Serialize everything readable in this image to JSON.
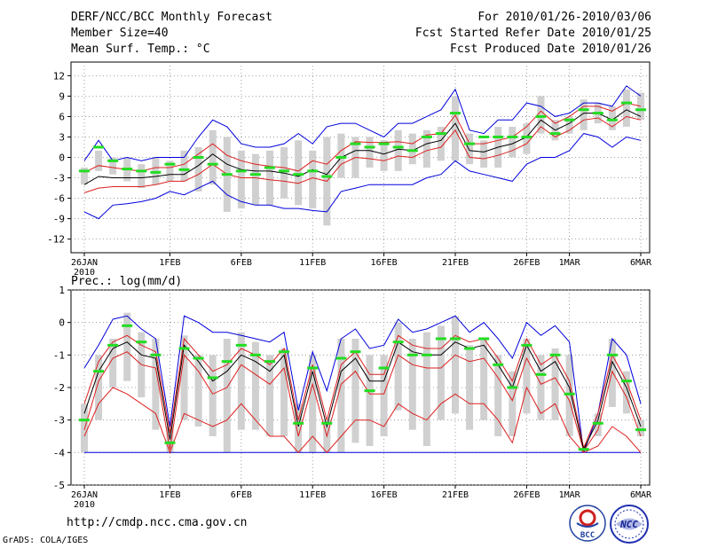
{
  "header": {
    "title": "DERF/NCC/BCC Monthly Forecast",
    "member_size": "Member Size=40",
    "variable": "Mean Surf. Temp.: °C",
    "for_period": "For 2010/01/26-2010/03/06",
    "fcst_started": "Fcst Started Refer Date 2010/01/25",
    "fcst_produced": "Fcst Produced Date 2010/01/26"
  },
  "footer": {
    "url": "http://cmdp.ncc.cma.gov.cn",
    "grads": "GrADS: COLA/IGES",
    "logo_bcc": "BCC",
    "logo_ncc": "NCC"
  },
  "colors": {
    "box": "#d0d0d0",
    "mean": "#000000",
    "spread": "#dd2020",
    "extreme": "#0000dd",
    "marker": "#22dd22",
    "grid": "#888888"
  },
  "chart_data": [
    {
      "type": "line",
      "title": "Mean Surf. Temp.: °C",
      "ylim": [
        -14,
        14
      ],
      "yticks": [
        12,
        9,
        6,
        3,
        0,
        -3,
        -6,
        -9,
        -12
      ],
      "xticks": [
        {
          "day": 0,
          "label": "26JAN",
          "sub": "2010"
        },
        {
          "day": 6,
          "label": "1FEB"
        },
        {
          "day": 11,
          "label": "6FEB"
        },
        {
          "day": 16,
          "label": "11FEB"
        },
        {
          "day": 21,
          "label": "16FEB"
        },
        {
          "day": 26,
          "label": "21FEB"
        },
        {
          "day": 31,
          "label": "26FEB"
        },
        {
          "day": 34,
          "label": "1MAR"
        },
        {
          "day": 39,
          "label": "6MAR"
        }
      ],
      "mean": [
        -4,
        -2.8,
        -3,
        -3,
        -3,
        -2.8,
        -2.5,
        -2.5,
        -1.2,
        0.5,
        -1,
        -1.8,
        -2,
        -2,
        -2.3,
        -2.8,
        -1.8,
        -2.5,
        0,
        1,
        1,
        0.5,
        1.2,
        1,
        2,
        2.5,
        5,
        1,
        0.8,
        1.5,
        2,
        3,
        5.5,
        4,
        5,
        6.5,
        6.5,
        5.5,
        7,
        6
      ],
      "upper_spread": [
        -2.2,
        -1.2,
        -1.5,
        -1.8,
        -2,
        -1.5,
        -1.5,
        -1,
        0.5,
        2,
        0.3,
        -0.5,
        -1,
        -1.3,
        -1.5,
        -2,
        -0.5,
        -1,
        1,
        2.3,
        2.2,
        2.2,
        2.3,
        2,
        3.3,
        3.5,
        6.2,
        2,
        2,
        2.5,
        3,
        4.5,
        6.8,
        5,
        6,
        7.5,
        7.5,
        6.8,
        8,
        7.5
      ],
      "lower_spread": [
        -5.2,
        -4.5,
        -4.3,
        -4.3,
        -4.3,
        -4,
        -3.5,
        -3.5,
        -2.5,
        -1,
        -2.5,
        -3,
        -3,
        -3.3,
        -3.5,
        -3.8,
        -3,
        -3.5,
        -1,
        0,
        -0.2,
        -0.5,
        0.2,
        0,
        1,
        1.5,
        4,
        0,
        -0.2,
        0.3,
        1,
        2,
        4.5,
        3,
        4,
        5.5,
        5.8,
        4.5,
        6,
        5.5
      ],
      "max": [
        -0.5,
        2.5,
        -0.5,
        0,
        -0.5,
        0,
        0,
        0,
        3,
        5.5,
        4.5,
        2,
        1.5,
        1.5,
        2,
        3.5,
        2,
        4.5,
        5,
        5,
        4,
        3,
        5,
        5,
        6,
        7,
        10,
        4,
        3.5,
        5.5,
        5.5,
        8,
        7.5,
        6,
        6.5,
        8,
        8,
        7.5,
        10.5,
        9
      ],
      "min": [
        -8,
        -9,
        -7,
        -6.8,
        -6.5,
        -6,
        -5,
        -5.5,
        -4.5,
        -3.5,
        -5.5,
        -6.5,
        -7,
        -7,
        -7.5,
        -7.5,
        -7.8,
        -8,
        -5,
        -4.5,
        -4,
        -4,
        -4,
        -4,
        -3,
        -2.5,
        -0.5,
        -2,
        -2.5,
        -3,
        -3.5,
        -1,
        0,
        0,
        1,
        3.5,
        3,
        1.5,
        3,
        2.5
      ],
      "box_top": [
        -1.5,
        1,
        0,
        0,
        -1,
        0,
        -0.5,
        1,
        1.5,
        4,
        3,
        1,
        0.5,
        1,
        1.5,
        2.5,
        1,
        3,
        3.5,
        3,
        3,
        2.5,
        4,
        3.5,
        4,
        4.5,
        9,
        3.5,
        2.5,
        4.5,
        4.5,
        5,
        9,
        5.5,
        6,
        8.5,
        8,
        7.5,
        10,
        9.5
      ],
      "box_bottom": [
        -4,
        -2,
        -2.5,
        -3.5,
        -4.5,
        -4,
        -3.5,
        -3.5,
        -5,
        -4,
        -8,
        -7.5,
        -7,
        -7,
        -6,
        -7,
        -7.5,
        -10,
        -3,
        -3,
        -1.5,
        -2,
        -2,
        -1,
        -1.5,
        -0.5,
        -0.5,
        -1,
        -1.5,
        -1.5,
        0,
        0.5,
        3.5,
        2.5,
        3.5,
        4,
        5,
        4,
        4.5,
        5.5
      ],
      "marker": [
        -2,
        1.5,
        -0.5,
        -1.7,
        -2,
        -2.2,
        -1,
        -1.8,
        0,
        -1,
        -2.5,
        -2,
        -2.5,
        -1.5,
        -2,
        -2.5,
        -2,
        -2.8,
        0,
        2,
        1.5,
        2,
        1.5,
        1,
        3,
        3.5,
        6.5,
        2,
        3,
        3,
        3,
        3,
        6,
        3.5,
        5.5,
        7,
        6.5,
        5.5,
        8,
        7
      ]
    },
    {
      "type": "line",
      "title": "Prec.: log(mm/d)",
      "ylim": [
        -5,
        1
      ],
      "yticks": [
        1,
        0,
        -1,
        -2,
        -3,
        -4,
        -5
      ],
      "xticks": [
        {
          "day": 0,
          "label": "26JAN",
          "sub": "2010"
        },
        {
          "day": 6,
          "label": "1FEB"
        },
        {
          "day": 11,
          "label": "6FEB"
        },
        {
          "day": 16,
          "label": "11FEB"
        },
        {
          "day": 21,
          "label": "16FEB"
        },
        {
          "day": 26,
          "label": "21FEB"
        },
        {
          "day": 31,
          "label": "26FEB"
        },
        {
          "day": 34,
          "label": "1MAR"
        },
        {
          "day": 39,
          "label": "6MAR"
        }
      ],
      "mean": [
        -2.8,
        -1.5,
        -0.8,
        -0.6,
        -1,
        -1.1,
        -3.6,
        -0.7,
        -1.2,
        -1.8,
        -1.5,
        -1,
        -1.2,
        -1.5,
        -1,
        -3.2,
        -1.5,
        -3.2,
        -1.5,
        -1.1,
        -1.8,
        -1.8,
        -0.6,
        -0.9,
        -1,
        -1,
        -0.6,
        -0.8,
        -0.7,
        -1.3,
        -2,
        -0.7,
        -1.5,
        -1.2,
        -2,
        -3.9,
        -3,
        -1.2,
        -2,
        -3.2
      ],
      "upper_spread": [
        -2.5,
        -1.2,
        -0.6,
        -0.4,
        -0.7,
        -0.9,
        -3.4,
        -0.5,
        -1,
        -1.5,
        -1.3,
        -0.8,
        -1,
        -1.3,
        -0.8,
        -3,
        -1.3,
        -3,
        -1.3,
        -0.9,
        -1.6,
        -1.6,
        -0.4,
        -0.7,
        -0.8,
        -0.8,
        -0.4,
        -0.6,
        -0.5,
        -1.1,
        -1.8,
        -0.5,
        -1.3,
        -1,
        -1.8,
        -3.85,
        -2.8,
        -1,
        -1.8,
        -3
      ],
      "lower_spread": [
        -3.3,
        -1.8,
        -1.1,
        -0.9,
        -1.3,
        -1.4,
        -3.9,
        -1,
        -1.5,
        -2.2,
        -2,
        -1.3,
        -1.6,
        -1.9,
        -1.4,
        -3.5,
        -1.9,
        -3.5,
        -1.9,
        -1.5,
        -2.2,
        -2.2,
        -1,
        -1.3,
        -1.4,
        -1.4,
        -1,
        -1.2,
        -1.1,
        -1.7,
        -2.4,
        -1.1,
        -1.9,
        -1.7,
        -2.4,
        -3.95,
        -3.3,
        -1.5,
        -2.3,
        -3.5
      ],
      "lower2": [
        -3.5,
        -2.5,
        -2,
        -2.2,
        -2.5,
        -2.8,
        -4,
        -2.8,
        -3,
        -3.2,
        -3,
        -2.5,
        -3,
        -3.5,
        -3.5,
        -4,
        -3.5,
        -4,
        -3.5,
        -3,
        -3,
        -3.2,
        -2.5,
        -2.8,
        -3,
        -2.5,
        -2.2,
        -2.5,
        -2.5,
        -3,
        -3.7,
        -2,
        -2.8,
        -2.5,
        -3.5,
        -4,
        -3.8,
        -3.2,
        -3.5,
        -4
      ],
      "max": [
        -1.4,
        -0.7,
        0.1,
        0.2,
        -0.2,
        -0.5,
        -3.2,
        0.2,
        0,
        -0.3,
        -0.3,
        -0.4,
        -0.5,
        -0.6,
        -0.3,
        -2.7,
        -0.9,
        -2.1,
        -0.5,
        -0.2,
        -0.8,
        -0.7,
        0.1,
        -0.3,
        -0.2,
        0,
        0.2,
        -0.3,
        0,
        -0.5,
        -1.1,
        0,
        -0.4,
        -0.1,
        -0.6,
        -4,
        -2.8,
        -0.5,
        -1,
        -2.5
      ],
      "min": [
        -4,
        -4,
        -4,
        -4,
        -4,
        -4,
        -4,
        -4,
        -4,
        -4,
        -4,
        -4,
        -4,
        -4,
        -4,
        -4,
        -4,
        -4,
        -4,
        -4,
        -4,
        -4,
        -4,
        -4,
        -4,
        -4,
        -4,
        -4,
        -4,
        -4,
        -4,
        -4,
        -4,
        -4,
        -4,
        -4,
        -4,
        -4,
        -4,
        -4
      ],
      "box_top": [
        -2.5,
        -1,
        -0.5,
        0.3,
        -0.3,
        -0.5,
        -3.2,
        -0.4,
        -1,
        -1,
        -0.5,
        -0.3,
        -0.6,
        -1,
        -0.8,
        -2.5,
        -1,
        -3,
        -0.5,
        -0.5,
        -1,
        -1,
        0,
        -0.5,
        -0.3,
        -0.1,
        0.2,
        -0.7,
        -0.5,
        -1,
        -1.5,
        -0.5,
        -1,
        -0.8,
        -1,
        -3.9,
        -2.8,
        -0.5,
        -1.5,
        -3
      ],
      "box_bottom": [
        -4,
        -3,
        -2,
        -1.8,
        -2.3,
        -3.3,
        -4,
        -3,
        -3.2,
        -3.5,
        -4,
        -3.3,
        -3.3,
        -3.5,
        -3.5,
        -4,
        -4,
        -4,
        -4,
        -3.7,
        -3.8,
        -3.5,
        -2.7,
        -3.3,
        -3.8,
        -3,
        -2.8,
        -3.3,
        -3,
        -3.5,
        -3.5,
        -2.8,
        -3,
        -3,
        -3.5,
        -4,
        -3.5,
        -2.6,
        -2.8,
        -3.5
      ],
      "marker": [
        -3,
        -1.5,
        -0.7,
        -0.1,
        -0.6,
        -1,
        -3.7,
        -0.8,
        -1.1,
        -1.7,
        -1.2,
        -0.7,
        -1,
        -1.2,
        -0.9,
        -3.1,
        -1.4,
        -3.1,
        -1.1,
        -0.9,
        -2.1,
        -1.4,
        -0.6,
        -1,
        -1,
        -0.5,
        -0.5,
        -0.8,
        -0.5,
        -1.3,
        -2,
        -0.7,
        -1.6,
        -1,
        -2.2,
        -3.9,
        -3.1,
        -1,
        -1.8,
        -3.3
      ]
    }
  ]
}
